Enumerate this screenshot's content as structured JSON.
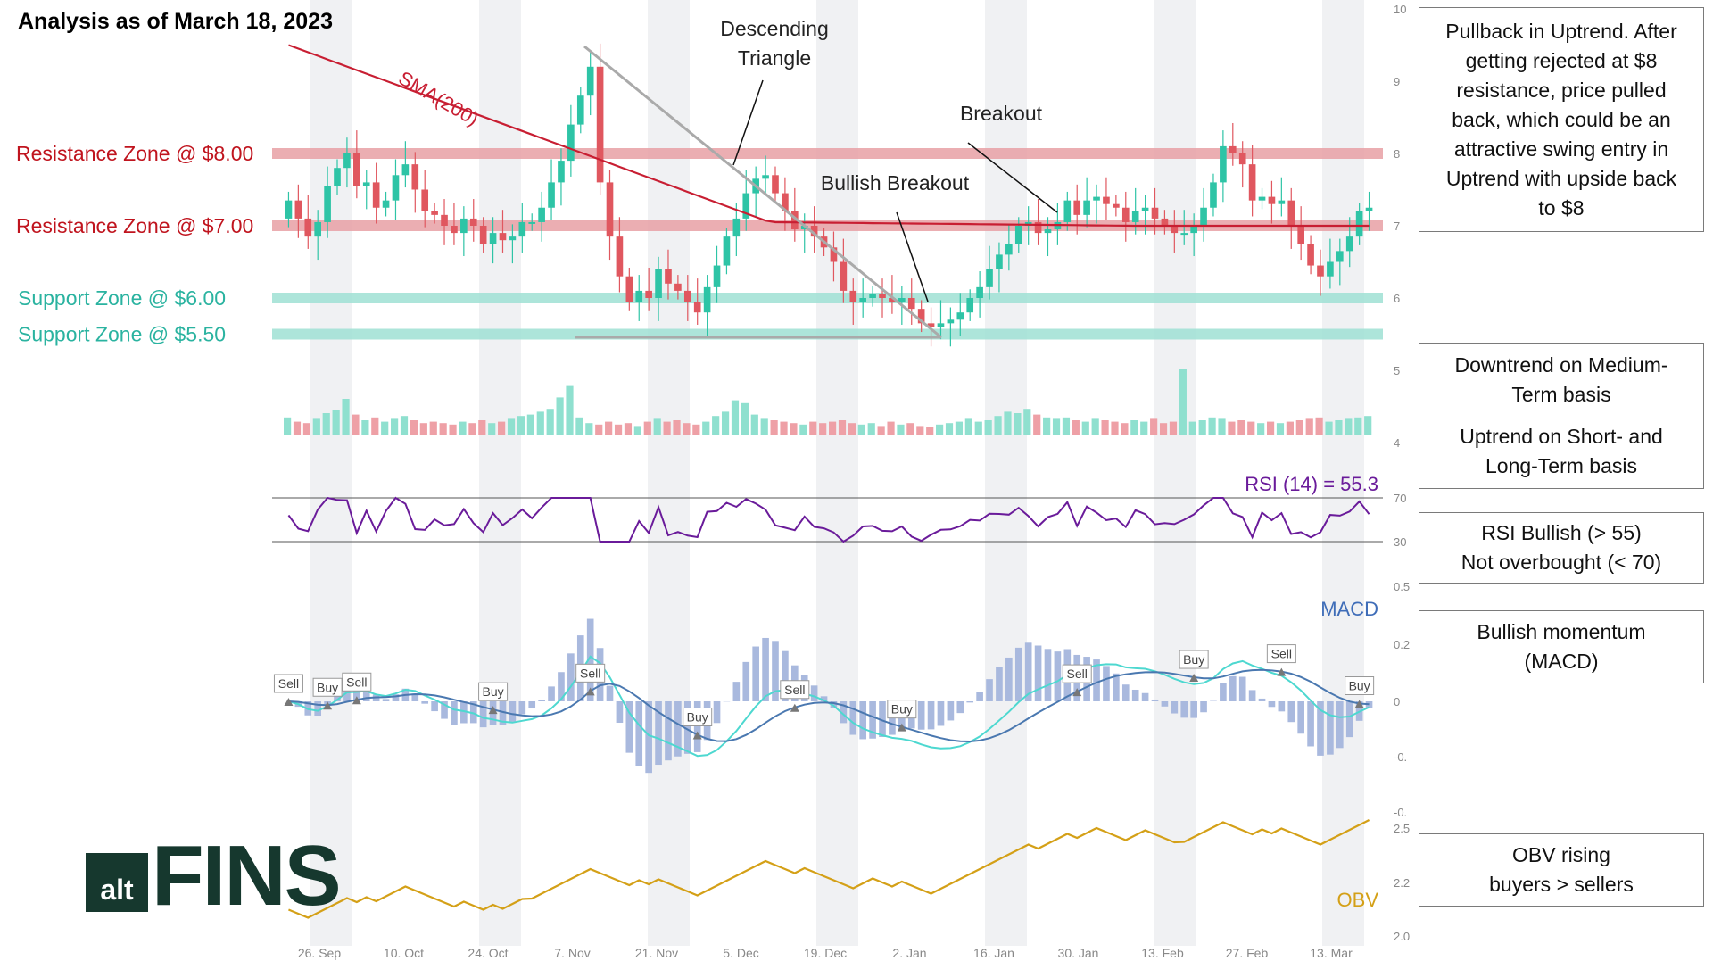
{
  "header": {
    "title": "Analysis as of March 18, 2023"
  },
  "logo": {
    "prefix": "alt",
    "name": "FINS",
    "color": "#16382e"
  },
  "colors": {
    "resistance": "#c0141e",
    "support": "#2ab3a0",
    "sma": "#c81e32",
    "rsi": "#6a1b9a",
    "macd_label": "#3f6db8",
    "obv": "#d4a017",
    "up_candle": "#2ec4a6",
    "down_candle": "#e0575f"
  },
  "notes": [
    {
      "lines": [
        "Pullback in Uptrend. After",
        "getting rejected at $8",
        "resistance, price pulled",
        "back, which could be an",
        "attractive swing entry in",
        "Uptrend with upside back",
        "to $8"
      ]
    },
    {
      "lines": [
        "Downtrend on Medium-",
        "Term basis",
        "",
        "Uptrend on Short- and",
        "Long-Term basis"
      ]
    },
    {
      "lines": [
        "RSI Bullish (> 55)",
        "Not overbought (< 70)"
      ]
    },
    {
      "lines": [
        "Bullish momentum",
        "(MACD)"
      ]
    },
    {
      "lines": [
        "OBV rising",
        "buyers > sellers"
      ]
    }
  ],
  "chart_data": {
    "type": "candlestick",
    "title": "Analysis as of March 18, 2023",
    "x_ticks": [
      "26. Sep",
      "10. Oct",
      "24. Oct",
      "7. Nov",
      "21. Nov",
      "5. Dec",
      "19. Dec",
      "2. Jan",
      "16. Jan",
      "30. Jan",
      "13. Feb",
      "27. Feb",
      "13. Mar"
    ],
    "price_axis": {
      "ylim": [
        4,
        10
      ],
      "ticks": [
        "10",
        "9",
        "8",
        "7",
        "6",
        "5",
        "4"
      ]
    },
    "closes": [
      7.35,
      7.1,
      6.85,
      7.05,
      7.55,
      7.8,
      8.0,
      7.55,
      7.6,
      7.25,
      7.35,
      7.7,
      7.85,
      7.5,
      7.2,
      7.15,
      7.0,
      6.9,
      7.1,
      7.0,
      6.75,
      6.9,
      6.8,
      6.85,
      7.05,
      7.05,
      7.25,
      7.6,
      7.9,
      8.4,
      8.8,
      9.2,
      7.6,
      6.85,
      6.3,
      5.95,
      6.1,
      6.0,
      6.4,
      6.2,
      6.1,
      5.95,
      5.8,
      6.15,
      6.45,
      6.85,
      7.1,
      7.45,
      7.65,
      7.7,
      7.45,
      7.2,
      6.95,
      7.0,
      6.85,
      6.7,
      6.5,
      6.1,
      5.95,
      6.0,
      6.05,
      6.0,
      5.95,
      6.0,
      5.85,
      5.65,
      5.6,
      5.65,
      5.7,
      5.8,
      6.0,
      6.15,
      6.4,
      6.6,
      6.75,
      7.0,
      7.05,
      6.9,
      6.95,
      7.05,
      7.35,
      7.15,
      7.35,
      7.4,
      7.3,
      7.25,
      7.05,
      7.2,
      7.25,
      7.1,
      7.0,
      6.9,
      6.9,
      7.0,
      7.25,
      7.6,
      8.1,
      8.0,
      7.85,
      7.35,
      7.4,
      7.3,
      7.35,
      7.0,
      6.75,
      6.45,
      6.3,
      6.5,
      6.65,
      6.85,
      7.2,
      7.25
    ],
    "volume": [
      12,
      9,
      8,
      11,
      15,
      17,
      25,
      14,
      10,
      12,
      9,
      11,
      13,
      10,
      8,
      9,
      8,
      7,
      9,
      8,
      10,
      8,
      9,
      11,
      13,
      14,
      16,
      18,
      26,
      34,
      12,
      8,
      7,
      9,
      7,
      8,
      6,
      9,
      11,
      9,
      10,
      8,
      7,
      9,
      13,
      16,
      24,
      22,
      14,
      11,
      10,
      9,
      8,
      7,
      9,
      8,
      9,
      10,
      8,
      7,
      8,
      6,
      9,
      7,
      8,
      6,
      5,
      7,
      8,
      9,
      11,
      9,
      10,
      13,
      16,
      15,
      18,
      14,
      12,
      11,
      12,
      10,
      9,
      11,
      10,
      9,
      8,
      10,
      9,
      11,
      8,
      9,
      46,
      9,
      10,
      12,
      11,
      9,
      10,
      9,
      8,
      9,
      8,
      9,
      10,
      11,
      12,
      9,
      10,
      11,
      12,
      13
    ],
    "rsi": {
      "label": "RSI (14) = 55.3",
      "levels": [
        70,
        30
      ],
      "value": 55.3
    },
    "macd": {
      "label": "MACD",
      "ticks": [
        "0.5",
        "0.2",
        "0",
        "-0.",
        "-0."
      ]
    },
    "macd_signals": [
      {
        "label": "Sell",
        "i": 0
      },
      {
        "label": "Buy",
        "i": 5
      },
      {
        "label": "Sell",
        "i": 10
      },
      {
        "label": "Buy",
        "i": 29
      },
      {
        "label": "Sell",
        "i": 42
      },
      {
        "label": "Buy",
        "i": 57
      },
      {
        "label": "Sell",
        "i": 71
      },
      {
        "label": "Buy",
        "i": 86
      },
      {
        "label": "Sell",
        "i": 111
      },
      {
        "label": "Buy",
        "i": 127
      },
      {
        "label": "Sell",
        "i": 139
      },
      {
        "label": "Buy",
        "i": 150
      }
    ],
    "obv": {
      "label": "OBV",
      "ticks": [
        "2.5",
        "2.2",
        "2.0"
      ]
    },
    "rsi_ticks": [
      "70",
      "30"
    ],
    "levels": [
      {
        "label": "Resistance Zone @ $8.00",
        "price": 8.0,
        "kind": "resistance"
      },
      {
        "label": "Resistance Zone @ $7.00",
        "price": 7.0,
        "kind": "resistance"
      },
      {
        "label": "Support Zone @ $6.00",
        "price": 6.0,
        "kind": "support"
      },
      {
        "label": "Support Zone @ $5.50",
        "price": 5.5,
        "kind": "support"
      }
    ],
    "annotations": [
      "SMA(200)",
      "Descending Triangle",
      "Breakout",
      "Bullish Breakout"
    ]
  }
}
